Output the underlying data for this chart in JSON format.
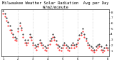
{
  "title": "Milwaukee Weather Solar Radiation  Avg per Day W/m2/minute",
  "title_fontsize": 4.0,
  "background_color": "#ffffff",
  "plot_bg_color": "#ffffff",
  "grid_color": "#999999",
  "y_min": 0,
  "y_max": 8.5,
  "y_ticks": [
    1,
    2,
    3,
    4,
    5,
    6,
    7,
    8
  ],
  "y_tick_fontsize": 3.0,
  "x_tick_fontsize": 2.8,
  "red_color": "#ff0000",
  "black_color": "#000000",
  "marker_size": 0.9,
  "vline_color": "#bbbbbb",
  "vline_style": ":",
  "red_data": [
    7.8,
    7.2,
    6.5,
    5.5,
    4.8,
    4.2,
    3.5,
    3.0,
    2.8,
    4.5,
    5.5,
    4.8,
    3.5,
    2.5,
    2.0,
    2.5,
    3.5,
    3.0,
    2.0,
    1.5,
    1.2,
    1.8,
    2.5,
    2.0,
    1.5,
    1.2,
    1.0,
    1.5,
    2.2,
    2.8,
    3.5,
    3.0,
    2.2,
    1.5,
    1.2,
    1.0,
    1.5,
    2.0,
    1.5,
    1.2,
    1.0,
    1.5,
    2.0,
    1.5,
    1.8,
    2.5,
    3.2,
    3.8,
    4.5,
    3.5,
    2.8,
    2.0,
    1.5,
    1.2,
    1.0,
    0.8,
    1.2,
    1.5,
    1.8,
    1.2,
    0.8,
    1.0,
    1.5,
    1.2
  ],
  "black_data": [
    8.2,
    7.8,
    7.0,
    6.2,
    5.5,
    4.8,
    4.0,
    3.5,
    3.2,
    5.0,
    6.0,
    5.2,
    4.0,
    3.0,
    2.5,
    3.0,
    4.0,
    3.5,
    2.5,
    2.0,
    1.8,
    2.2,
    3.0,
    2.5,
    2.0,
    1.8,
    1.5,
    2.0,
    2.8,
    3.2,
    4.0,
    3.5,
    2.8,
    2.0,
    1.8,
    1.5,
    2.0,
    2.5,
    2.0,
    1.8,
    1.5,
    2.0,
    2.5,
    2.0,
    2.2,
    3.0,
    3.8,
    4.2,
    5.0,
    4.0,
    3.2,
    2.5,
    2.0,
    1.8,
    1.5,
    1.2,
    1.8,
    2.0,
    2.2,
    1.8,
    1.2,
    1.5,
    2.0,
    1.5
  ],
  "num_points": 64,
  "vline_positions": [
    9,
    18,
    27,
    36,
    45,
    54
  ],
  "x_tick_positions": [
    0,
    9,
    18,
    27,
    36,
    45,
    54,
    63
  ],
  "x_tick_labels": [
    "1",
    "2",
    "3",
    "4",
    "5",
    "6",
    "7",
    "8"
  ]
}
